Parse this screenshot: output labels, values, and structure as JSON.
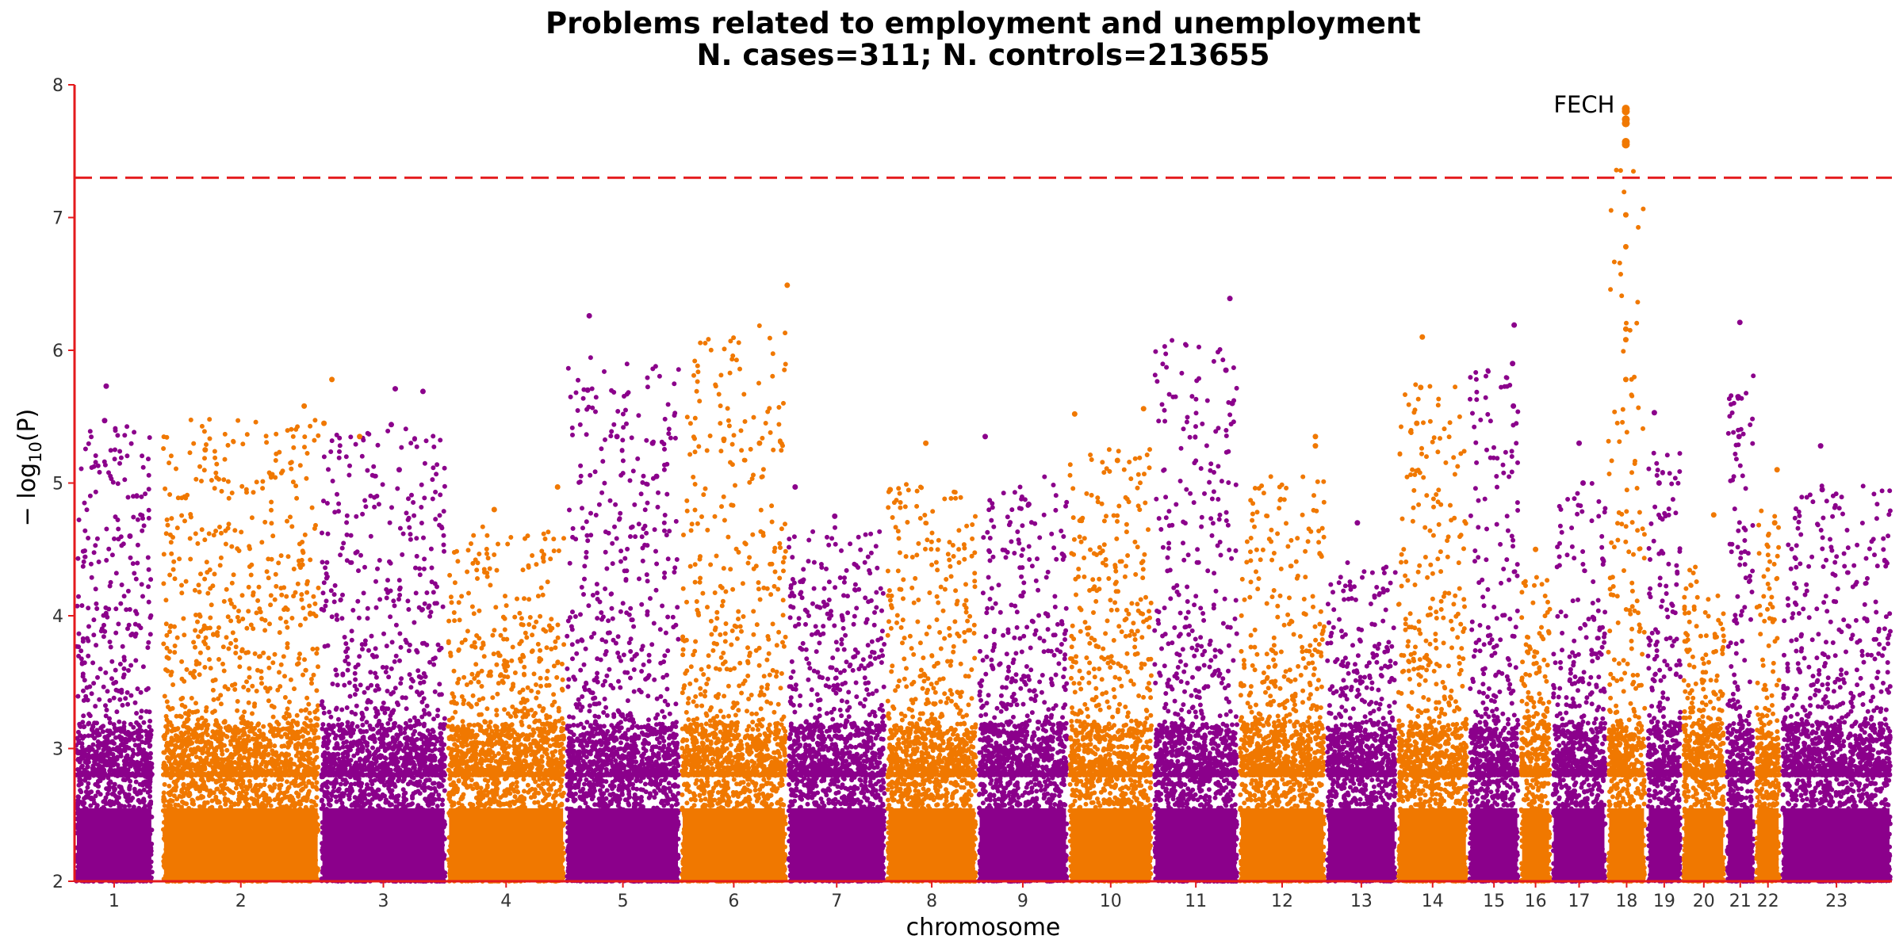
{
  "chart_data": {
    "type": "scatter",
    "subtype": "manhattan",
    "title": "Problems related to employment and unemployment",
    "subtitle": "N. cases=311; N. controls=213655",
    "xlabel": "chromosome",
    "ylabel": "− log10(P)",
    "ylabel_main": "− log",
    "ylabel_sub": "10",
    "ylabel_suffix": "(P)",
    "ylim": [
      2,
      8
    ],
    "yticks": [
      "2",
      "3",
      "4",
      "5",
      "6",
      "7",
      "8"
    ],
    "significance_line": {
      "value": 7.3,
      "color": "#e31a1c",
      "style": "dashed"
    },
    "axis_color": "#e31a1c",
    "colors": {
      "odd": "#8b008b",
      "even": "#f07800"
    },
    "chromosomes": [
      {
        "label": "1",
        "start": 0,
        "end": 100,
        "peak": 5.73,
        "hits": [
          [
            40,
            5.73
          ],
          [
            38,
            5.47
          ],
          [
            70,
            4.6
          ]
        ]
      },
      {
        "label": "2",
        "start": 110,
        "end": 310,
        "peak": 5.78,
        "hits": [
          [
            180,
            5.58
          ],
          [
            205,
            5.45
          ],
          [
            215,
            5.78
          ],
          [
            250,
            5.35
          ],
          [
            55,
            5.25
          ]
        ]
      },
      {
        "label": "3",
        "start": 310,
        "end": 470,
        "peak": 5.71,
        "hits": [
          [
            95,
            5.71
          ],
          [
            90,
            5.44
          ],
          [
            100,
            5.1
          ],
          [
            130,
            5.69
          ]
        ]
      },
      {
        "label": "4",
        "start": 470,
        "end": 620,
        "peak": 4.97,
        "hits": [
          [
            140,
            4.97
          ],
          [
            60,
            4.8
          ]
        ]
      },
      {
        "label": "5",
        "start": 620,
        "end": 765,
        "peak": 6.26,
        "hits": [
          [
            30,
            6.26
          ],
          [
            28,
            5.7
          ],
          [
            65,
            5.35
          ],
          [
            110,
            5.3
          ],
          [
            115,
            5.05
          ]
        ]
      },
      {
        "label": "6",
        "start": 765,
        "end": 900,
        "peak": 6.49,
        "hits": [
          [
            135,
            6.49
          ],
          [
            55,
            5.33
          ],
          [
            100,
            5.3
          ]
        ]
      },
      {
        "label": "7",
        "start": 900,
        "end": 1025,
        "peak": 4.97,
        "hits": [
          [
            10,
            4.97
          ],
          [
            60,
            4.75
          ]
        ]
      },
      {
        "label": "8",
        "start": 1025,
        "end": 1140,
        "peak": 5.3,
        "hits": [
          [
            50,
            5.3
          ],
          [
            5,
            4.95
          ]
        ]
      },
      {
        "label": "9",
        "start": 1140,
        "end": 1255,
        "peak": 5.35,
        "hits": [
          [
            10,
            5.35
          ],
          [
            65,
            4.84
          ]
        ]
      },
      {
        "label": "10",
        "start": 1255,
        "end": 1362,
        "peak": 5.56,
        "hits": [
          [
            8,
            5.52
          ],
          [
            95,
            5.56
          ],
          [
            62,
            5.17
          ]
        ]
      },
      {
        "label": "11",
        "start": 1362,
        "end": 1470,
        "peak": 6.39,
        "hits": [
          [
            97,
            6.39
          ],
          [
            92,
            5.85
          ],
          [
            100,
            5.6
          ]
        ]
      },
      {
        "label": "12",
        "start": 1470,
        "end": 1580,
        "peak": 5.35,
        "hits": [
          [
            97,
            5.35
          ],
          [
            97,
            5.28
          ]
        ]
      },
      {
        "label": "13",
        "start": 1580,
        "end": 1670,
        "peak": 4.7,
        "hits": [
          [
            40,
            4.7
          ]
        ]
      },
      {
        "label": "14",
        "start": 1670,
        "end": 1760,
        "peak": 6.1,
        "hits": [
          [
            32,
            6.1
          ],
          [
            30,
            5.72
          ],
          [
            25,
            5.45
          ]
        ]
      },
      {
        "label": "15",
        "start": 1760,
        "end": 1825,
        "peak": 6.19,
        "hits": [
          [
            58,
            6.19
          ],
          [
            56,
            5.9
          ],
          [
            57,
            5.58
          ]
        ]
      },
      {
        "label": "16",
        "start": 1825,
        "end": 1865,
        "peak": 4.5,
        "hits": [
          [
            20,
            4.5
          ]
        ]
      },
      {
        "label": "17",
        "start": 1865,
        "end": 1935,
        "peak": 5.3,
        "hits": [
          [
            35,
            5.3
          ],
          [
            40,
            5.0
          ]
        ]
      },
      {
        "label": "18",
        "start": 1935,
        "end": 1985,
        "peak": 7.82,
        "hits": [
          [
            24,
            7.82
          ],
          [
            24,
            7.8
          ],
          [
            24,
            7.74
          ],
          [
            24,
            7.71
          ],
          [
            24,
            7.57
          ],
          [
            24,
            7.55
          ],
          [
            24,
            7.02
          ],
          [
            24,
            6.78
          ],
          [
            24,
            6.16
          ],
          [
            24,
            6.08
          ],
          [
            24,
            5.78
          ]
        ]
      },
      {
        "label": "19",
        "start": 1985,
        "end": 2030,
        "peak": 5.53,
        "hits": [
          [
            10,
            5.53
          ],
          [
            16,
            5.0
          ]
        ]
      },
      {
        "label": "20",
        "start": 2030,
        "end": 2085,
        "peak": 4.76,
        "hits": [
          [
            40,
            4.76
          ]
        ]
      },
      {
        "label": "21",
        "start": 2085,
        "end": 2122,
        "peak": 6.21,
        "hits": [
          [
            18,
            6.21
          ],
          [
            16,
            5.65
          ],
          [
            17,
            5.35
          ]
        ]
      },
      {
        "label": "22",
        "start": 2122,
        "end": 2155,
        "peak": 5.1,
        "hits": [
          [
            28,
            5.1
          ],
          [
            25,
            4.7
          ]
        ]
      },
      {
        "label": "23",
        "start": 2155,
        "end": 2295,
        "peak": 5.28,
        "hits": [
          [
            50,
            5.28
          ],
          [
            52,
            4.95
          ]
        ]
      }
    ],
    "annotations": [
      {
        "text": "FECH",
        "chromosome": "18",
        "y": 7.82
      }
    ]
  }
}
